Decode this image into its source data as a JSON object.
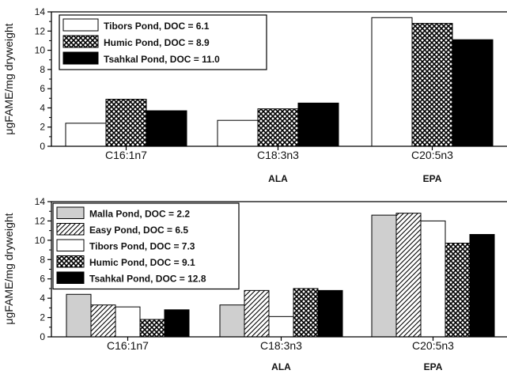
{
  "chart_data": [
    {
      "type": "bar",
      "ylabel": "μgFAME/mg dryweight",
      "ylim": [
        0,
        14
      ],
      "yticks": [
        0,
        2,
        4,
        6,
        8,
        10,
        12,
        14
      ],
      "categories": [
        "C16:1n7",
        "C18:3n3",
        "C20:5n3"
      ],
      "sublabels": [
        "",
        "ALA",
        "EPA"
      ],
      "legend_position": "top-left",
      "series": [
        {
          "name": "Tibors Pond, DOC = 6.1",
          "pattern": "white",
          "values": [
            2.4,
            2.7,
            13.4
          ]
        },
        {
          "name": "Humic Pond, DOC = 8.9",
          "pattern": "crosshatch",
          "values": [
            4.9,
            3.9,
            12.8
          ]
        },
        {
          "name": "Tsahkal Pond, DOC = 11.0",
          "pattern": "black",
          "values": [
            3.7,
            4.5,
            11.1
          ]
        }
      ]
    },
    {
      "type": "bar",
      "ylabel": "μgFAME/mg dryweight",
      "ylim": [
        0,
        14
      ],
      "yticks": [
        0,
        2,
        4,
        6,
        8,
        10,
        12,
        14
      ],
      "categories": [
        "C16:1n7",
        "C18:3n3",
        "C20:5n3"
      ],
      "sublabels": [
        "",
        "ALA",
        "EPA"
      ],
      "legend_position": "top-left",
      "series": [
        {
          "name": "Malla Pond, DOC = 2.2",
          "pattern": "gray",
          "values": [
            4.4,
            3.3,
            12.6
          ]
        },
        {
          "name": "Easy Pond, DOC = 6.5",
          "pattern": "diagonal",
          "values": [
            3.3,
            4.8,
            12.8
          ]
        },
        {
          "name": "Tibors Pond, DOC = 7.3",
          "pattern": "white",
          "values": [
            3.1,
            2.1,
            12.0
          ]
        },
        {
          "name": "Humic Pond, DOC = 9.1",
          "pattern": "crosshatch",
          "values": [
            1.8,
            5.0,
            9.7
          ]
        },
        {
          "name": "Tsahkal Pond, DOC = 12.8",
          "pattern": "black",
          "values": [
            2.8,
            4.8,
            10.6
          ]
        }
      ]
    }
  ]
}
